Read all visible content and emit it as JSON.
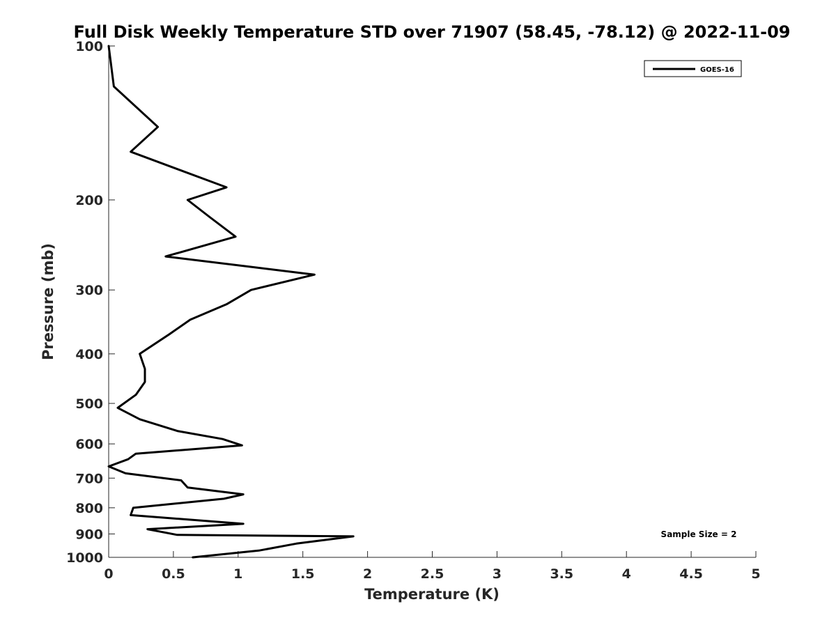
{
  "chart_data": {
    "type": "line",
    "title": "Full Disk Weekly Temperature STD over 71907 (58.45, -78.12) @ 2022-11-09",
    "xlabel": "Temperature (K)",
    "ylabel": "Pressure (mb)",
    "xlim": [
      0,
      5
    ],
    "ylim": [
      1000,
      100
    ],
    "y_scale": "log",
    "y_reversed": true,
    "grid": false,
    "legend_position": "top-right",
    "x_ticks": [
      0,
      0.5,
      1,
      1.5,
      2,
      2.5,
      3,
      3.5,
      4,
      4.5,
      5
    ],
    "x_tick_labels": [
      "0",
      "0.5",
      "1",
      "1.5",
      "2",
      "2.5",
      "3",
      "3.5",
      "4",
      "4.5",
      "5"
    ],
    "y_ticks": [
      100,
      200,
      300,
      400,
      500,
      600,
      700,
      800,
      900,
      1000
    ],
    "y_tick_labels": [
      "100",
      "200",
      "300",
      "400",
      "500",
      "600",
      "700",
      "800",
      "900",
      "1000"
    ],
    "annotation": "Sample Size = 2",
    "series": [
      {
        "name": "GOES-16",
        "color": "#000000",
        "points": [
          [
            0.0,
            100
          ],
          [
            0.04,
            120
          ],
          [
            0.38,
            144
          ],
          [
            0.17,
            161
          ],
          [
            0.91,
            189
          ],
          [
            0.61,
            200
          ],
          [
            0.78,
            216
          ],
          [
            0.98,
            236
          ],
          [
            0.44,
            258
          ],
          [
            1.59,
            280
          ],
          [
            1.1,
            300
          ],
          [
            0.91,
            320
          ],
          [
            0.63,
            343
          ],
          [
            0.47,
            366
          ],
          [
            0.24,
            400
          ],
          [
            0.28,
            428
          ],
          [
            0.28,
            454
          ],
          [
            0.21,
            481
          ],
          [
            0.07,
            510
          ],
          [
            0.24,
            537
          ],
          [
            0.53,
            566
          ],
          [
            0.88,
            587
          ],
          [
            1.03,
            604
          ],
          [
            0.21,
            627
          ],
          [
            0.15,
            643
          ],
          [
            0.0,
            664
          ],
          [
            0.13,
            685
          ],
          [
            0.56,
            707
          ],
          [
            0.61,
            730
          ],
          [
            1.04,
            753
          ],
          [
            0.89,
            768
          ],
          [
            0.19,
            800
          ],
          [
            0.17,
            827
          ],
          [
            1.04,
            860
          ],
          [
            0.3,
            881
          ],
          [
            0.53,
            904
          ],
          [
            1.89,
            910
          ],
          [
            1.45,
            940
          ],
          [
            1.16,
            970
          ],
          [
            0.65,
            1000
          ]
        ]
      }
    ]
  }
}
